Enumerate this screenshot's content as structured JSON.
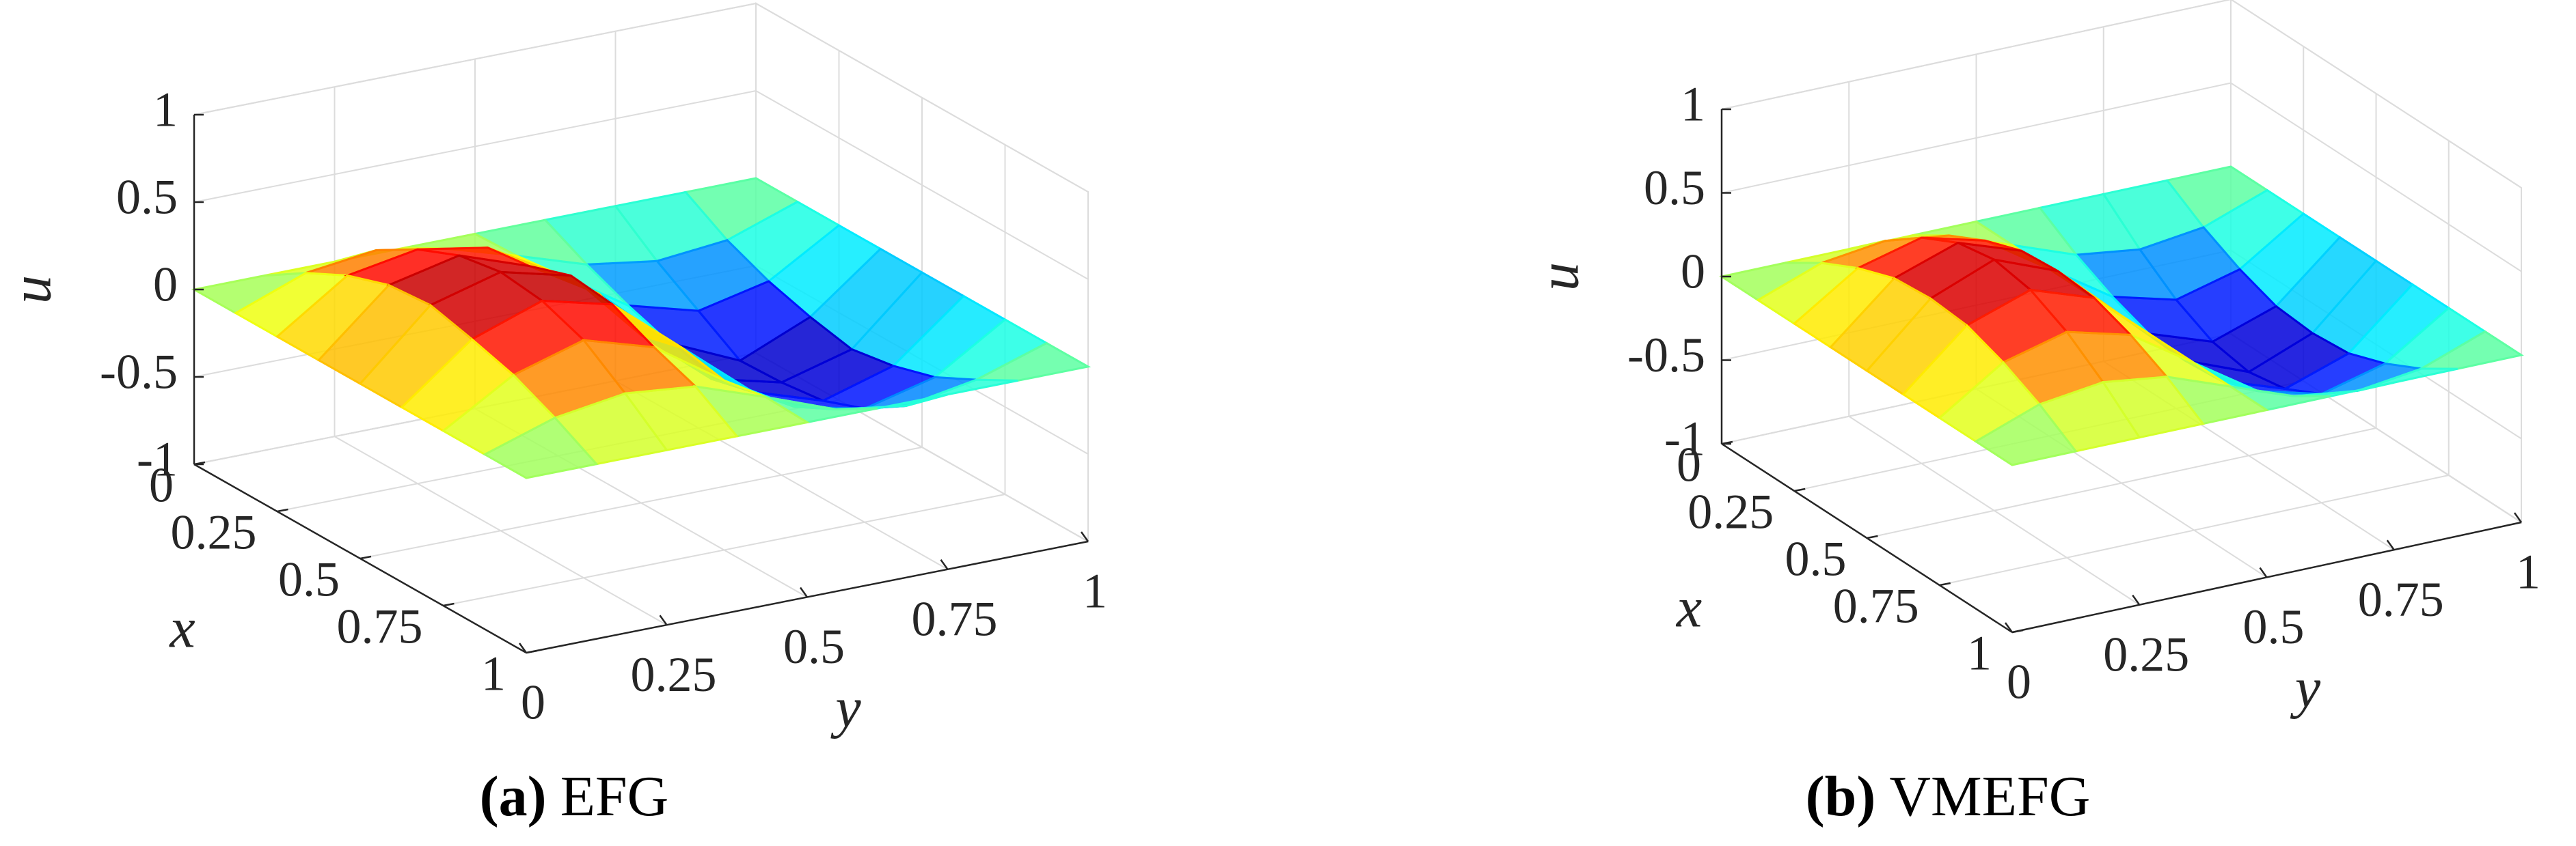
{
  "chart_data": [
    {
      "type": "surface",
      "caption_label": "(a)",
      "caption": "EFG",
      "xlabel": "x",
      "ylabel": "y",
      "zlabel": "u",
      "x": [
        0,
        0.125,
        0.25,
        0.375,
        0.5,
        0.625,
        0.75,
        0.875,
        1
      ],
      "y": [
        0,
        0.125,
        0.25,
        0.375,
        0.5,
        0.625,
        0.75,
        0.875,
        1
      ],
      "z": [
        [
          0,
          0,
          0,
          0,
          0,
          0,
          0,
          0,
          0
        ],
        [
          0,
          0.15,
          0.2,
          0.13,
          0.01,
          -0.12,
          -0.18,
          -0.14,
          0
        ],
        [
          0,
          0.27,
          0.34,
          0.27,
          0.04,
          -0.22,
          -0.33,
          -0.24,
          0
        ],
        [
          0,
          0.35,
          0.44,
          0.3,
          0.06,
          -0.3,
          -0.48,
          -0.31,
          0
        ],
        [
          0,
          0.37,
          0.48,
          0.38,
          -0.04,
          -0.37,
          -0.47,
          -0.36,
          0
        ],
        [
          0,
          0.31,
          0.45,
          0.35,
          0.02,
          -0.31,
          -0.44,
          -0.32,
          0
        ],
        [
          0,
          0.24,
          0.36,
          0.24,
          -0.03,
          -0.26,
          -0.35,
          -0.25,
          0
        ],
        [
          0,
          0.13,
          0.19,
          0.15,
          0.01,
          -0.14,
          -0.2,
          -0.13,
          0
        ],
        [
          0,
          0,
          0,
          0,
          0,
          0,
          0,
          0,
          0
        ]
      ],
      "xlim": [
        0,
        1
      ],
      "ylim": [
        0,
        1
      ],
      "zlim": [
        -1,
        1
      ],
      "xticks": [
        0,
        0.25,
        0.5,
        0.75,
        1
      ],
      "yticks": [
        0,
        0.25,
        0.5,
        0.75,
        1
      ],
      "zticks": [
        -1,
        -0.5,
        0,
        0.5,
        1
      ],
      "grid": true,
      "colormap": "jet"
    },
    {
      "type": "surface",
      "caption_label": "(b)",
      "caption": "VMEFG",
      "xlabel": "x",
      "ylabel": "y",
      "zlabel": "u",
      "x": [
        0,
        0.125,
        0.25,
        0.375,
        0.5,
        0.625,
        0.75,
        0.875,
        1
      ],
      "y": [
        0,
        0.125,
        0.25,
        0.375,
        0.5,
        0.625,
        0.75,
        0.875,
        1
      ],
      "z": [
        [
          0,
          0,
          0,
          0,
          0,
          0,
          0,
          0,
          0
        ],
        [
          0,
          0.14,
          0.19,
          0.14,
          0,
          -0.14,
          -0.19,
          -0.14,
          0
        ],
        [
          0,
          0.25,
          0.35,
          0.25,
          0,
          -0.25,
          -0.35,
          -0.25,
          0
        ],
        [
          0,
          0.33,
          0.46,
          0.33,
          0,
          -0.33,
          -0.46,
          -0.33,
          0
        ],
        [
          0,
          0.35,
          0.5,
          0.35,
          0,
          -0.35,
          -0.5,
          -0.35,
          0
        ],
        [
          0,
          0.33,
          0.46,
          0.33,
          0,
          -0.33,
          -0.46,
          -0.33,
          0
        ],
        [
          0,
          0.25,
          0.35,
          0.25,
          0,
          -0.25,
          -0.35,
          -0.25,
          0
        ],
        [
          0,
          0.14,
          0.19,
          0.14,
          0,
          -0.14,
          -0.19,
          -0.14,
          0
        ],
        [
          0,
          0,
          0,
          0,
          0,
          0,
          0,
          0,
          0
        ]
      ],
      "xlim": [
        0,
        1
      ],
      "ylim": [
        0,
        1
      ],
      "zlim": [
        -1,
        1
      ],
      "xticks": [
        0,
        0.25,
        0.5,
        0.75,
        1
      ],
      "yticks": [
        0,
        0.25,
        0.5,
        0.75,
        1
      ],
      "zticks": [
        -1,
        -0.5,
        0,
        0.5,
        1
      ],
      "grid": true,
      "colormap": "jet"
    }
  ]
}
